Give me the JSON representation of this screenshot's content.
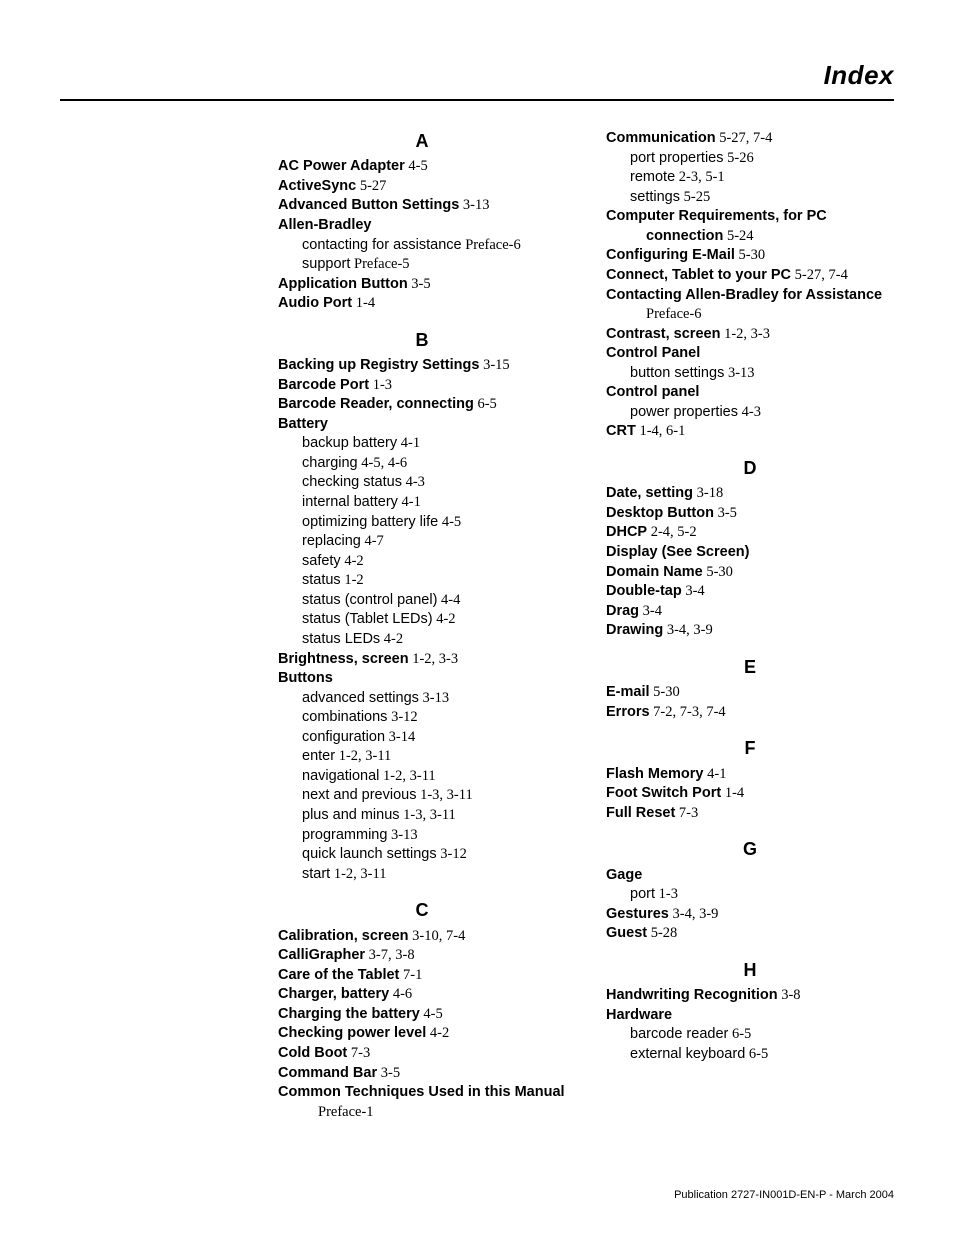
{
  "page": {
    "title": "Index",
    "footer": "Publication 2727-IN001D-EN-P - March 2004"
  },
  "left": {
    "A": {
      "letter": "A",
      "entries": [
        {
          "term": "AC Power Adapter",
          "ref": " 4-5"
        },
        {
          "term": "ActiveSync",
          "ref": " 5-27"
        },
        {
          "term": "Advanced Button Settings",
          "ref": " 3-13"
        },
        {
          "term": "Allen-Bradley",
          "ref": "",
          "subs": [
            {
              "label": "contacting for assistance",
              "ref": " Preface-6"
            },
            {
              "label": "support",
              "ref": " Preface-5"
            }
          ]
        },
        {
          "term": "Application Button",
          "ref": " 3-5"
        },
        {
          "term": "Audio Port",
          "ref": " 1-4"
        }
      ]
    },
    "B": {
      "letter": "B",
      "entries": [
        {
          "term": "Backing up Registry Settings",
          "ref": " 3-15"
        },
        {
          "term": "Barcode Port",
          "ref": " 1-3"
        },
        {
          "term": "Barcode Reader, connecting",
          "ref": " 6-5"
        },
        {
          "term": "Battery",
          "ref": "",
          "subs": [
            {
              "label": "backup battery",
              "ref": " 4-1"
            },
            {
              "label": "charging",
              "ref": " 4-5, 4-6"
            },
            {
              "label": "checking status",
              "ref": " 4-3"
            },
            {
              "label": "internal battery",
              "ref": " 4-1"
            },
            {
              "label": "optimizing battery life",
              "ref": " 4-5"
            },
            {
              "label": "replacing",
              "ref": " 4-7"
            },
            {
              "label": "safety",
              "ref": " 4-2"
            },
            {
              "label": "status",
              "ref": " 1-2"
            },
            {
              "label": "status (control panel)",
              "ref": " 4-4"
            },
            {
              "label": "status (Tablet LEDs)",
              "ref": " 4-2"
            },
            {
              "label": "status LEDs",
              "ref": " 4-2"
            }
          ]
        },
        {
          "term": "Brightness, screen",
          "ref": " 1-2, 3-3"
        },
        {
          "term": "Buttons",
          "ref": "",
          "subs": [
            {
              "label": "advanced settings",
              "ref": " 3-13"
            },
            {
              "label": "combinations",
              "ref": " 3-12"
            },
            {
              "label": "configuration",
              "ref": " 3-14"
            },
            {
              "label": "enter",
              "ref": " 1-2, 3-11"
            },
            {
              "label": "navigational",
              "ref": " 1-2, 3-11"
            },
            {
              "label": "next and previous",
              "ref": " 1-3, 3-11"
            },
            {
              "label": "plus and minus",
              "ref": " 1-3, 3-11"
            },
            {
              "label": "programming",
              "ref": " 3-13"
            },
            {
              "label": "quick launch settings",
              "ref": " 3-12"
            },
            {
              "label": "start",
              "ref": " 1-2, 3-11"
            }
          ]
        }
      ]
    },
    "C": {
      "letter": "C",
      "entries": [
        {
          "term": "Calibration, screen",
          "ref": " 3-10, 7-4"
        },
        {
          "term": "CalliGrapher",
          "ref": " 3-7, 3-8"
        },
        {
          "term": "Care of the Tablet",
          "ref": " 7-1"
        },
        {
          "term": "Charger, battery",
          "ref": " 4-6"
        },
        {
          "term": "Charging the battery",
          "ref": " 4-5"
        },
        {
          "term": "Checking power level",
          "ref": " 4-2"
        },
        {
          "term": "Cold Boot",
          "ref": " 7-3"
        },
        {
          "term": "Command Bar",
          "ref": " 3-5"
        },
        {
          "term": "Common Techniques Used in this Manual",
          "ref": " Preface-1",
          "indent_term": true
        }
      ]
    }
  },
  "right": {
    "C2": {
      "entries": [
        {
          "term": "Communication",
          "ref": " 5-27, 7-4",
          "subs": [
            {
              "label": "port properties",
              "ref": " 5-26"
            },
            {
              "label": "remote",
              "ref": " 2-3, 5-1"
            },
            {
              "label": "settings",
              "ref": " 5-25"
            }
          ]
        },
        {
          "term": "Computer Requirements, for PC connection",
          "ref": " 5-24",
          "indent_term": true
        },
        {
          "term": "Configuring E-Mail",
          "ref": " 5-30"
        },
        {
          "term": "Connect, Tablet to your PC",
          "ref": " 5-27, 7-4"
        },
        {
          "term": "Contacting Allen-Bradley for Assistance",
          "ref": "Preface-6",
          "ref_line": true
        },
        {
          "term": "Contrast, screen",
          "ref": " 1-2, 3-3"
        },
        {
          "term": "Control Panel",
          "ref": "",
          "subs": [
            {
              "label": "button settings",
              "ref": " 3-13"
            }
          ]
        },
        {
          "term": "Control panel",
          "ref": "",
          "subs": [
            {
              "label": "power properties",
              "ref": " 4-3"
            }
          ]
        },
        {
          "term": "CRT",
          "ref": " 1-4, 6-1"
        }
      ]
    },
    "D": {
      "letter": "D",
      "entries": [
        {
          "term": "Date, setting",
          "ref": " 3-18"
        },
        {
          "term": "Desktop Button",
          "ref": " 3-5"
        },
        {
          "term": "DHCP",
          "ref": " 2-4, 5-2"
        },
        {
          "term": "Display (See Screen)",
          "ref": ""
        },
        {
          "term": "Domain Name",
          "ref": " 5-30"
        },
        {
          "term": "Double-tap",
          "ref": " 3-4"
        },
        {
          "term": "Drag",
          "ref": " 3-4"
        },
        {
          "term": "Drawing",
          "ref": " 3-4, 3-9"
        }
      ]
    },
    "E": {
      "letter": "E",
      "entries": [
        {
          "term": "E-mail",
          "ref": " 5-30"
        },
        {
          "term": "Errors",
          "ref": " 7-2, 7-3, 7-4"
        }
      ]
    },
    "F": {
      "letter": "F",
      "entries": [
        {
          "term": "Flash Memory",
          "ref": " 4-1"
        },
        {
          "term": "Foot Switch Port",
          "ref": " 1-4"
        },
        {
          "term": "Full Reset",
          "ref": " 7-3"
        }
      ]
    },
    "G": {
      "letter": "G",
      "entries": [
        {
          "term": "Gage",
          "ref": "",
          "subs": [
            {
              "label": "port",
              "ref": " 1-3"
            }
          ]
        },
        {
          "term": "Gestures",
          "ref": " 3-4, 3-9"
        },
        {
          "term": "Guest",
          "ref": " 5-28"
        }
      ]
    },
    "H": {
      "letter": "H",
      "entries": [
        {
          "term": "Handwriting Recognition",
          "ref": " 3-8"
        },
        {
          "term": "Hardware",
          "ref": "",
          "subs": [
            {
              "label": "barcode reader",
              "ref": " 6-5"
            },
            {
              "label": "external keyboard",
              "ref": " 6-5"
            }
          ]
        }
      ]
    }
  }
}
